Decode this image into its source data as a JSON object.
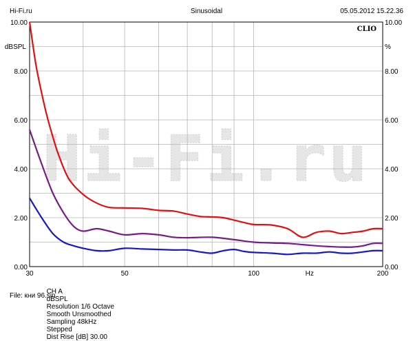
{
  "header": {
    "left": "Hi-Fi.ru",
    "center": "Sinusoidal",
    "right": "05.05.2012 15.22.36"
  },
  "chart_data": {
    "type": "line",
    "brand": "CLIO",
    "watermark": "Hi-Fi.ru",
    "xscale": "log",
    "xlim": [
      30,
      200
    ],
    "ylim": [
      0,
      10
    ],
    "grid": true,
    "ylabel_left": "dBSPL",
    "ylabel_right": "%",
    "xunit": "Hz",
    "x_ticks": [
      "30",
      "50",
      "100",
      "200"
    ],
    "y_ticks_left": [
      "0.00",
      "2.00",
      "4.00",
      "6.00",
      "8.00",
      "10.00"
    ],
    "y_ticks_right": [
      "0.00",
      "2.00",
      "4.00",
      "6.00",
      "8.00",
      "10.00"
    ],
    "series": [
      {
        "color": "#e01010",
        "x": [
          30,
          31,
          32,
          33,
          34,
          35,
          37,
          40,
          43,
          46,
          50,
          55,
          60,
          65,
          70,
          75,
          80,
          85,
          90,
          95,
          100,
          110,
          120,
          130,
          140,
          150,
          160,
          170,
          180,
          190,
          200
        ],
        "y": [
          10.0,
          8.3,
          7.1,
          6.1,
          5.3,
          4.6,
          3.6,
          2.95,
          2.6,
          2.42,
          2.4,
          2.38,
          2.3,
          2.27,
          2.15,
          2.05,
          2.03,
          2.0,
          1.9,
          1.8,
          1.72,
          1.7,
          1.55,
          1.2,
          1.4,
          1.45,
          1.35,
          1.4,
          1.45,
          1.55,
          1.55
        ]
      },
      {
        "color": "#7a1a8a",
        "x": [
          30,
          32,
          34,
          36,
          38,
          40,
          43,
          46,
          50,
          55,
          60,
          65,
          70,
          80,
          90,
          100,
          110,
          120,
          130,
          140,
          150,
          160,
          170,
          180,
          190,
          200
        ],
        "y": [
          5.6,
          4.2,
          3.0,
          2.2,
          1.65,
          1.45,
          1.55,
          1.45,
          1.3,
          1.35,
          1.3,
          1.2,
          1.18,
          1.2,
          1.1,
          1.0,
          0.97,
          0.95,
          0.9,
          0.85,
          0.82,
          0.8,
          0.8,
          0.85,
          0.95,
          0.95
        ]
      },
      {
        "color": "#1818c8",
        "x": [
          30,
          32,
          34,
          36,
          38,
          40,
          43,
          46,
          50,
          55,
          60,
          65,
          70,
          75,
          80,
          85,
          90,
          95,
          100,
          110,
          120,
          130,
          140,
          150,
          160,
          170,
          180,
          190,
          200
        ],
        "y": [
          2.8,
          2.0,
          1.35,
          1.0,
          0.85,
          0.75,
          0.65,
          0.65,
          0.75,
          0.72,
          0.7,
          0.68,
          0.68,
          0.6,
          0.55,
          0.65,
          0.7,
          0.62,
          0.58,
          0.55,
          0.5,
          0.55,
          0.55,
          0.6,
          0.55,
          0.55,
          0.6,
          0.65,
          0.65
        ]
      }
    ]
  },
  "footer": {
    "params": [
      "CH A",
      "dBSPL",
      "Resolution 1/6 Octave",
      "Smooth Unsmoothed",
      "Sampling 48kHz",
      "Stepped",
      "Dist Rise [dB] 30.00"
    ],
    "file": "File: кни 96.sin"
  }
}
